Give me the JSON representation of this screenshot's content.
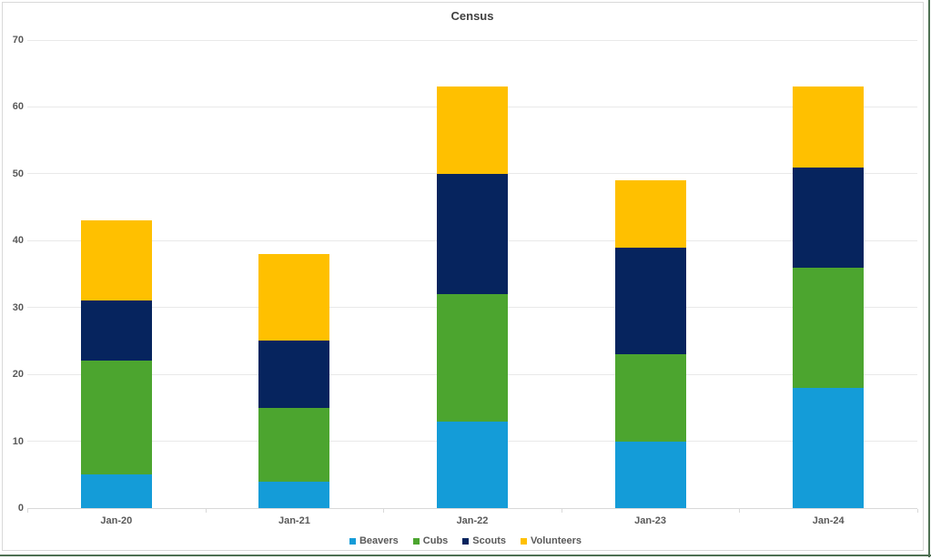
{
  "title": "Census",
  "chart_data": {
    "type": "bar",
    "stacked": true,
    "title": "Census",
    "categories": [
      "Jan-20",
      "Jan-21",
      "Jan-22",
      "Jan-23",
      "Jan-24"
    ],
    "series": [
      {
        "name": "Beavers",
        "color": "#149CD8",
        "values": [
          5,
          4,
          13,
          10,
          18
        ]
      },
      {
        "name": "Cubs",
        "color": "#4CA52F",
        "values": [
          17,
          11,
          19,
          13,
          18
        ]
      },
      {
        "name": "Scouts",
        "color": "#06245E",
        "values": [
          9,
          10,
          18,
          16,
          15
        ]
      },
      {
        "name": "Volunteers",
        "color": "#FFC000",
        "values": [
          12,
          13,
          13,
          10,
          12
        ]
      }
    ],
    "totals": [
      43,
      38,
      63,
      49,
      63
    ],
    "ylim": [
      0,
      70
    ],
    "yticks": [
      0,
      10,
      20,
      30,
      40,
      50,
      60,
      70
    ],
    "xlabel": "",
    "ylabel": "",
    "grid": true,
    "legend_position": "bottom"
  },
  "frame": {
    "chart_border_color": "#d9d9d9",
    "window_border_color": "#4E7052",
    "gridline_color": "#e9e9e9",
    "axis_color": "#d9d9d9",
    "title_color": "#404040",
    "label_color": "#595959"
  }
}
